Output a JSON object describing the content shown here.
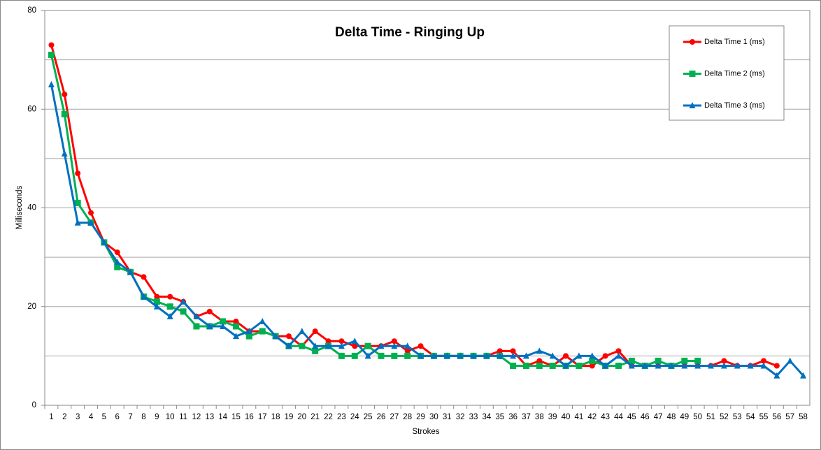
{
  "chart_data": {
    "type": "line",
    "title": "Delta Time - Ringing Up",
    "x_label": "Strokes",
    "y_label": "Milliseconds",
    "categories": [
      1,
      2,
      3,
      4,
      5,
      6,
      7,
      8,
      9,
      10,
      11,
      12,
      13,
      14,
      15,
      16,
      17,
      18,
      19,
      20,
      21,
      22,
      23,
      24,
      25,
      26,
      27,
      28,
      29,
      30,
      31,
      32,
      33,
      34,
      35,
      36,
      37,
      38,
      39,
      40,
      41,
      42,
      43,
      44,
      45,
      46,
      47,
      48,
      49,
      50,
      51,
      52,
      53,
      54,
      55,
      56,
      57,
      58
    ],
    "series": [
      {
        "name": "Delta Time 1 (ms)",
        "color": "#ff0000",
        "marker": "circle",
        "values": [
          73,
          63,
          47,
          39,
          33,
          31,
          27,
          26,
          22,
          22,
          21,
          18,
          19,
          17,
          17,
          15,
          15,
          14,
          14,
          12,
          15,
          13,
          13,
          12,
          12,
          12,
          13,
          11,
          12,
          10,
          10,
          10,
          10,
          10,
          11,
          11,
          8,
          9,
          8,
          10,
          8,
          8,
          10,
          11,
          8,
          8,
          8,
          8,
          8,
          8,
          8,
          9,
          8,
          8,
          9,
          8,
          null,
          null
        ]
      },
      {
        "name": "Delta Time 2 (ms)",
        "color": "#00b050",
        "marker": "square",
        "values": [
          71,
          59,
          41,
          37,
          33,
          28,
          27,
          22,
          21,
          20,
          19,
          16,
          16,
          17,
          16,
          14,
          15,
          14,
          12,
          12,
          11,
          12,
          10,
          10,
          12,
          10,
          10,
          10,
          10,
          10,
          10,
          10,
          10,
          10,
          10,
          8,
          8,
          8,
          8,
          8,
          8,
          9,
          8,
          8,
          9,
          8,
          9,
          8,
          9,
          9,
          null,
          null,
          null,
          null,
          null,
          null,
          null,
          null
        ]
      },
      {
        "name": "Delta Time 3 (ms)",
        "color": "#0070c0",
        "marker": "triangle",
        "values": [
          65,
          51,
          37,
          37,
          33,
          29,
          27,
          22,
          20,
          18,
          21,
          18,
          16,
          16,
          14,
          15,
          17,
          14,
          12,
          15,
          12,
          12,
          12,
          13,
          10,
          12,
          12,
          12,
          10,
          10,
          10,
          10,
          10,
          10,
          10,
          10,
          10,
          11,
          10,
          8,
          10,
          10,
          8,
          10,
          8,
          8,
          8,
          8,
          8,
          8,
          8,
          8,
          8,
          8,
          8,
          6,
          9,
          6
        ]
      }
    ],
    "ylim": [
      0,
      80
    ],
    "yticks": [
      0,
      20,
      40,
      60,
      80
    ],
    "minor_yticks": [
      10,
      30,
      50,
      70
    ],
    "grid": true,
    "legend": "upper right"
  }
}
